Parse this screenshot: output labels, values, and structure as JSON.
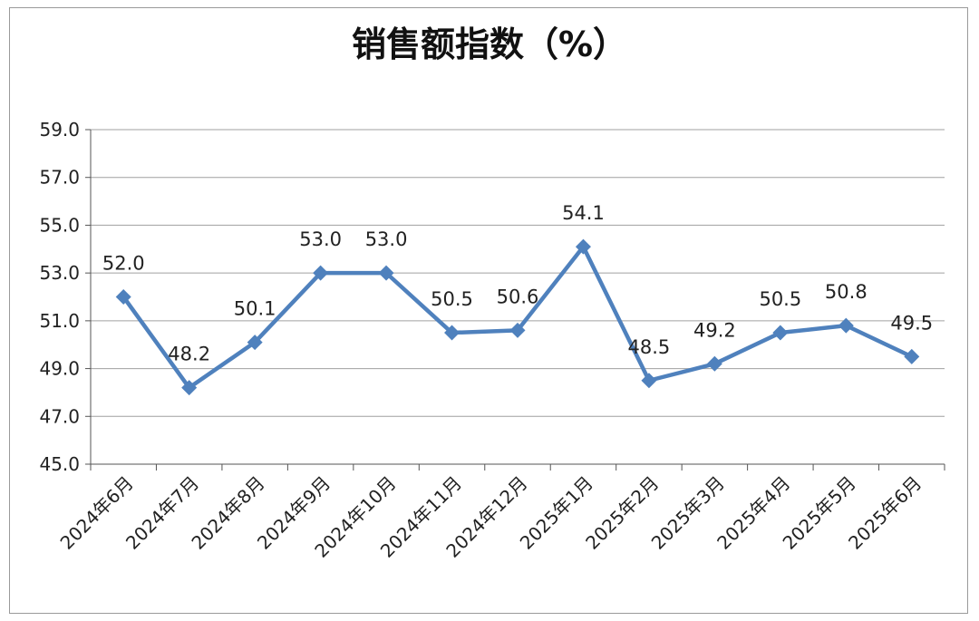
{
  "chart_data": {
    "type": "line",
    "title": "销售额指数（%）",
    "categories": [
      "2024年6月",
      "2024年7月",
      "2024年8月",
      "2024年9月",
      "2024年10月",
      "2024年11月",
      "2024年12月",
      "2025年1月",
      "2025年2月",
      "2025年3月",
      "2025年4月",
      "2025年5月",
      "2025年6月"
    ],
    "values": [
      52.0,
      48.2,
      50.1,
      53.0,
      53.0,
      50.5,
      50.6,
      54.1,
      48.5,
      49.2,
      50.5,
      50.8,
      49.5
    ],
    "data_labels": [
      "52.0",
      "48.2",
      "50.1",
      "53.0",
      "53.0",
      "50.5",
      "50.6",
      "54.1",
      "48.5",
      "49.2",
      "50.5",
      "50.8",
      "49.5"
    ],
    "y_ticks": [
      "45.0",
      "47.0",
      "49.0",
      "51.0",
      "53.0",
      "55.0",
      "57.0",
      "59.0"
    ],
    "ylim": [
      45,
      59
    ],
    "grid": true,
    "legend": "none",
    "line_color": "#4f81bd",
    "grid_color": "#a0a0a0"
  }
}
